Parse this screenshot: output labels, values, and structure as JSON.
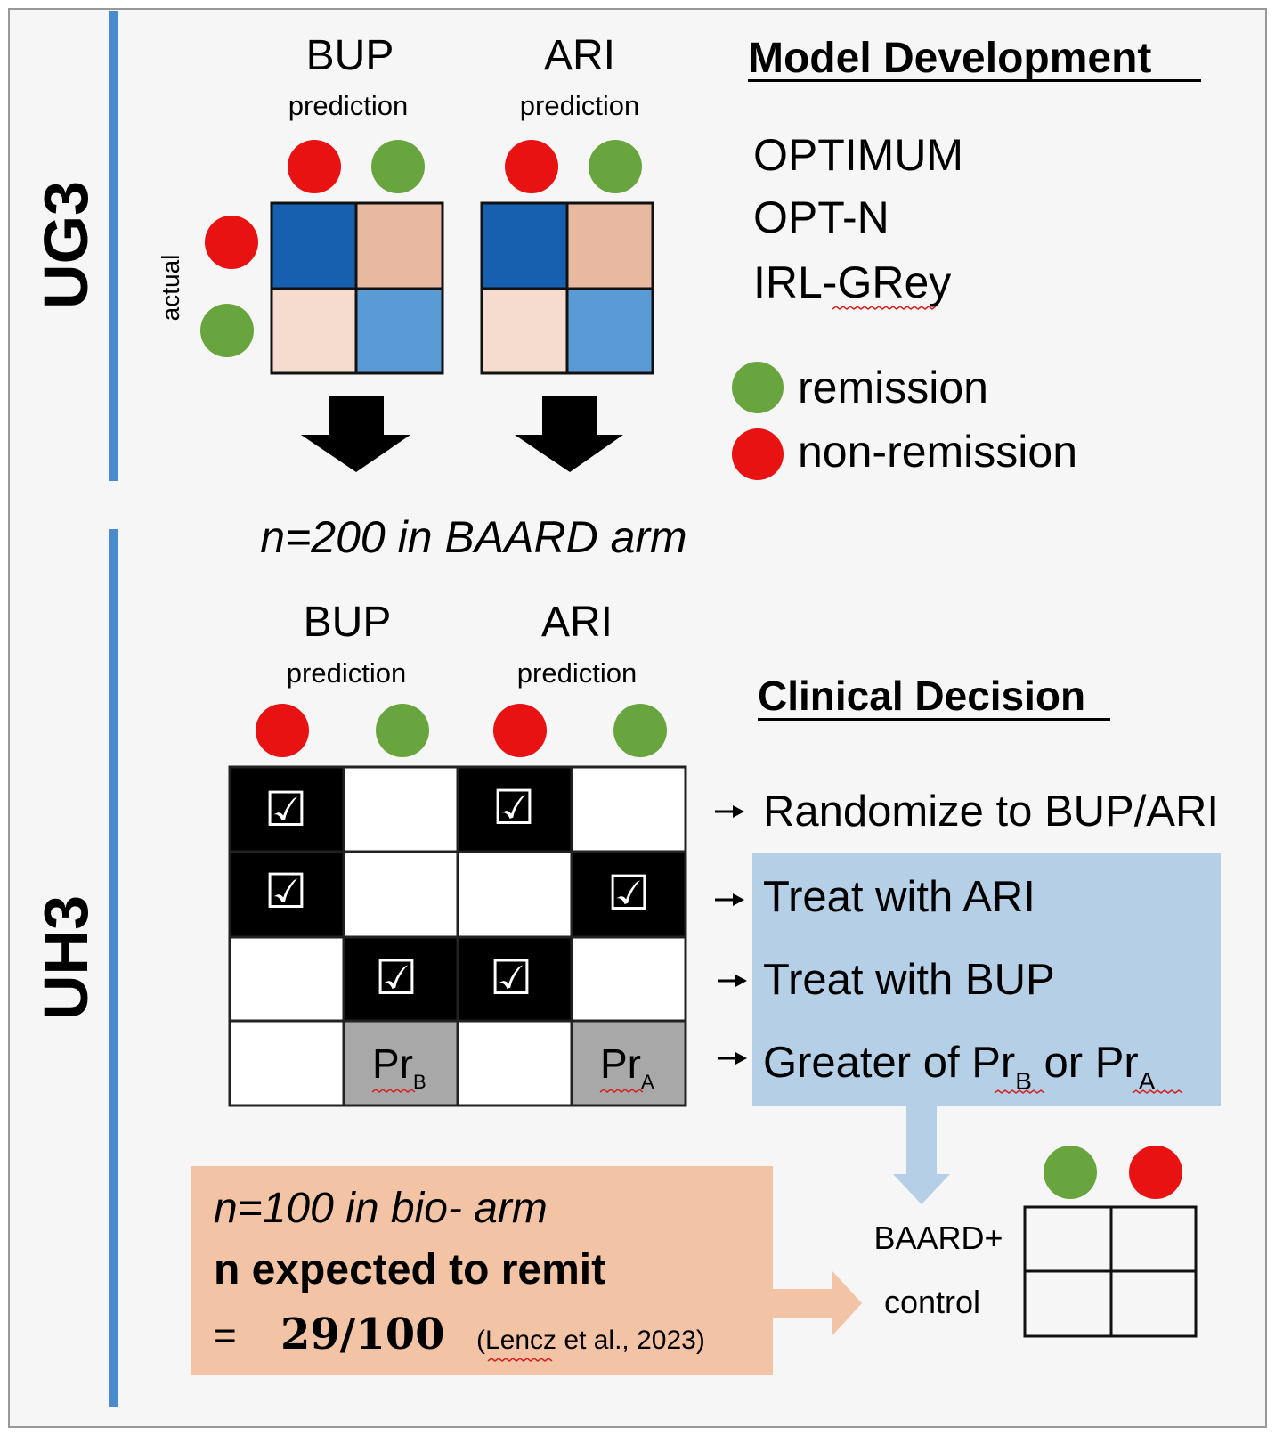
{
  "sections": {
    "top": "UG3",
    "bottom": "UH3"
  },
  "model_development": {
    "title": "Model Development",
    "models": [
      "OPTIMUM",
      "OPT-N",
      "IRL-GRey"
    ],
    "legend": {
      "remission": "remission",
      "non_remission": "non-remission"
    }
  },
  "ug3": {
    "axis_actual": "actual",
    "bup": {
      "drug": "BUP",
      "sub": "prediction"
    },
    "ari": {
      "drug": "ARI",
      "sub": "prediction"
    }
  },
  "baard_arm": "n=200 in BAARD arm",
  "uh3": {
    "bup": {
      "drug": "BUP",
      "sub": "prediction"
    },
    "ari": {
      "drug": "ARI",
      "sub": "prediction"
    },
    "clinical_title": "Clinical Decision",
    "decisions": {
      "d1": "Randomize to BUP/ARI",
      "d2": "Treat with ARI",
      "d3": "Treat with BUP",
      "d4_prefix": "Greater of ",
      "d4_pr": "Pr",
      "d4_b": "B",
      "d4_or": " or ",
      "d4_a": "A"
    },
    "cells": {
      "check": "☑",
      "pr": "Pr",
      "sub_b": "B",
      "sub_a": "A"
    }
  },
  "bio_box": {
    "line1": "n=100 in bio- arm",
    "line2": "n expected to remit",
    "eq": "=",
    "frac": "29/100",
    "cite": "(Lencz et al., 2023)"
  },
  "control": {
    "line1": "BAARD+",
    "line2": "control"
  },
  "colors": {
    "red": "#e81212",
    "green": "#69a53f",
    "dark_blue": "#1760b0",
    "light_blue": "#5b9bd5",
    "salmon": "#e8b8a0",
    "light_salmon": "#f5dccf",
    "decision_blue": "#b4cfe6",
    "bio_orange": "#f2c3a5",
    "gray": "#a8a8a8",
    "rule_blue": "#4a8bd0"
  }
}
